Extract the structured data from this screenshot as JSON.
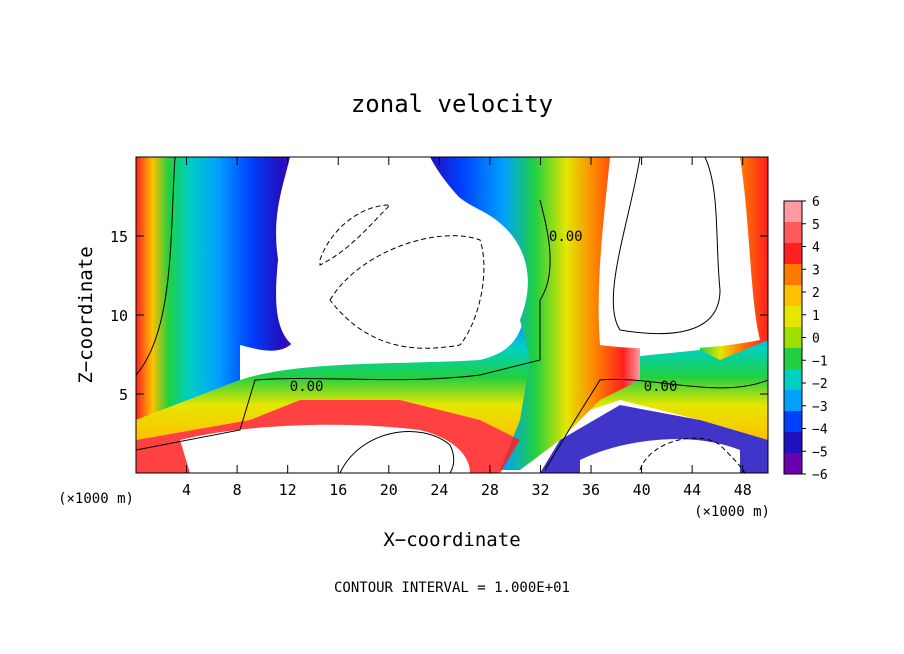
{
  "chart_data": {
    "type": "heatmap",
    "title": "zonal velocity",
    "xlabel": "X−coordinate",
    "ylabel": "Z−coordinate",
    "x_unit_left": "(×1000 m)",
    "x_unit_right": "(×1000 m)",
    "xlim": [
      0,
      50
    ],
    "ylim": [
      0,
      20
    ],
    "xticks": [
      4,
      8,
      12,
      16,
      20,
      24,
      28,
      32,
      36,
      40,
      44,
      48
    ],
    "yticks": [
      5,
      10,
      15
    ],
    "colorbar": {
      "levels": [
        6,
        5,
        4,
        3,
        2,
        1,
        0,
        -1,
        -2,
        -3,
        -4,
        -5,
        -6
      ],
      "labels": [
        "6",
        "5",
        "4",
        "3",
        "2",
        "1",
        "0",
        "−1",
        "−2",
        "−3",
        "−4",
        "−5",
        "−6"
      ],
      "colors": [
        "#ff9aa0",
        "#ff5a5a",
        "#ff2020",
        "#ff7a00",
        "#ffc000",
        "#e6e600",
        "#a0e000",
        "#20d040",
        "#00d0c0",
        "#00a0ff",
        "#0040ff",
        "#2010c0",
        "#6a00b0"
      ]
    },
    "contour_labels": [
      {
        "text": "0.00",
        "x": 13.5,
        "z": 5.5
      },
      {
        "text": "0.00",
        "x": 34.0,
        "z": 15.0
      },
      {
        "text": "0.00",
        "x": 41.5,
        "z": 5.5
      }
    ],
    "footnote": "CONTOUR INTERVAL = 1.000E+01"
  }
}
